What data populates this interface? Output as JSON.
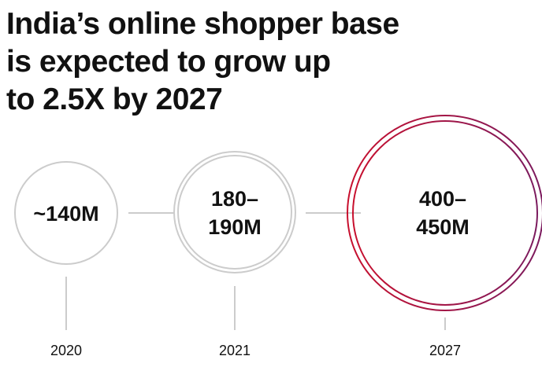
{
  "header": {
    "title_lines": [
      "India’s online shopper base",
      "is expected to grow up",
      "to 2.5X by 2027"
    ]
  },
  "nodes": [
    {
      "label_lines": [
        "~140M"
      ],
      "year": "2020"
    },
    {
      "label_lines": [
        "180–",
        "190M"
      ],
      "year": "2021"
    },
    {
      "label_lines": [
        "400–",
        "450M"
      ],
      "year": "2027"
    }
  ]
}
